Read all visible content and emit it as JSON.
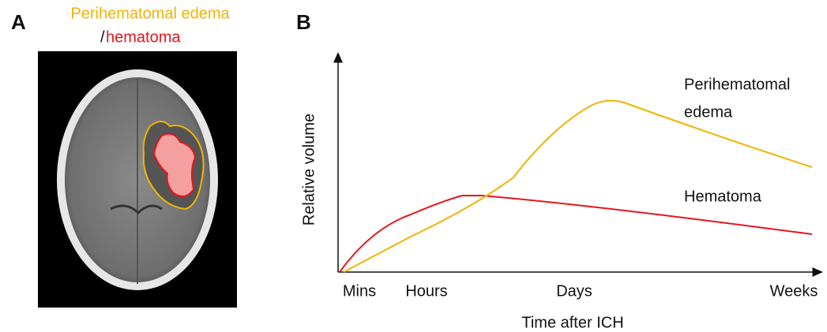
{
  "panel_a": {
    "label": "A",
    "title": "Perihematomal edema",
    "title_prefix": "/",
    "title_red": "hematoma"
  },
  "panel_b": {
    "label": "B",
    "y_axis_label": "Relative volume",
    "x_axis_label": "Time after ICH",
    "x_tick_labels": [
      "Mins",
      "Hours",
      "Days",
      "Weeks"
    ],
    "curve_labels": {
      "edema_line1": "Perihematomal",
      "edema_line2": "edema",
      "hematoma": "Hematoma"
    }
  }
}
